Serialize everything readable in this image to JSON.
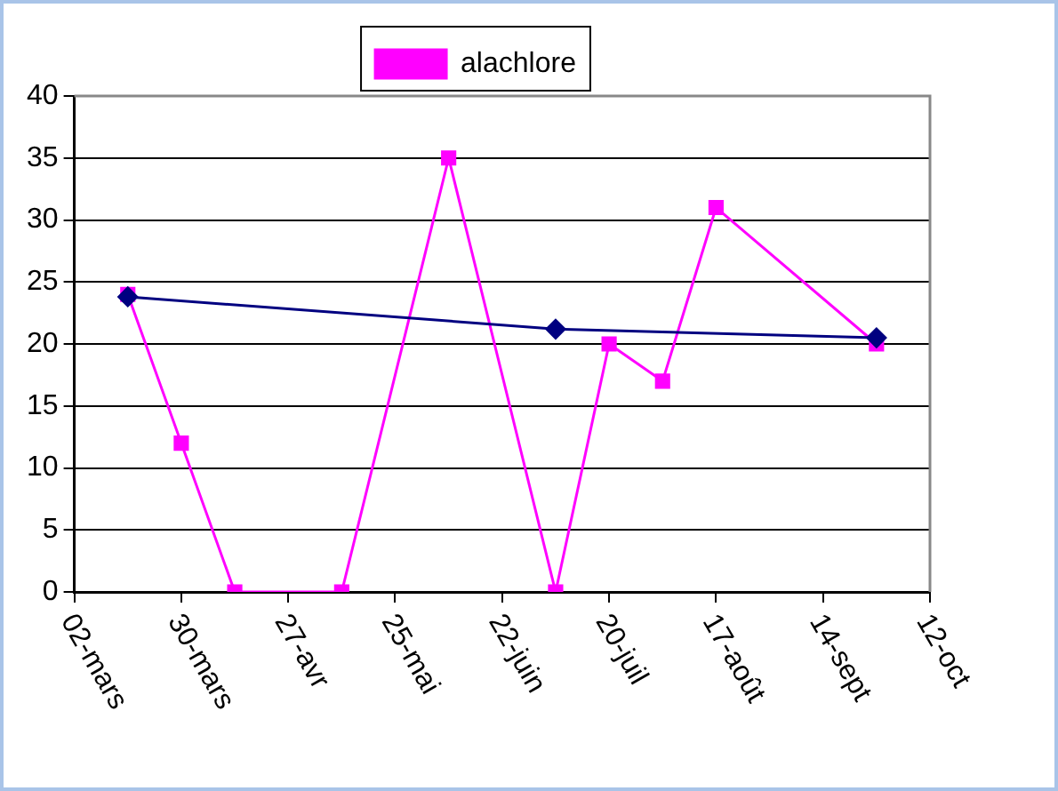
{
  "chart_data": {
    "type": "line",
    "series": [
      {
        "name": "alachlore",
        "color": "#ff00ff",
        "marker": "square",
        "x": [
          "--03-16",
          "--03-30",
          "--04-13",
          "--05-11",
          "--06-08",
          "--07-06",
          "--07-20",
          "--08-03",
          "--08-17",
          "--09-28"
        ],
        "values": [
          24,
          12,
          0,
          0,
          35,
          0,
          20,
          17,
          31,
          20
        ]
      },
      {
        "color": "#000080",
        "marker": "diamond",
        "x": [
          "--03-16",
          "--07-06",
          "--09-28"
        ],
        "values": [
          23.8,
          21.2,
          20.5
        ]
      }
    ],
    "xlim": [
      "--03-02",
      "--10-12"
    ],
    "xticks": [
      {
        "value": "--03-02",
        "label": "02-mars"
      },
      {
        "value": "--03-30",
        "label": "30-mars"
      },
      {
        "value": "--04-27",
        "label": "27-avr"
      },
      {
        "value": "--05-25",
        "label": "25-mai"
      },
      {
        "value": "--06-22",
        "label": "22-juin"
      },
      {
        "value": "--07-20",
        "label": "20-juil"
      },
      {
        "value": "--08-17",
        "label": "17-août"
      },
      {
        "value": "--09-14",
        "label": "14-sept"
      },
      {
        "value": "--10-12",
        "label": "12-oct"
      }
    ],
    "ylim": [
      0,
      40
    ],
    "yticks": [
      0,
      5,
      10,
      15,
      20,
      25,
      30,
      35,
      40
    ],
    "grid": "y",
    "legend": "top",
    "line_style": "solid"
  }
}
